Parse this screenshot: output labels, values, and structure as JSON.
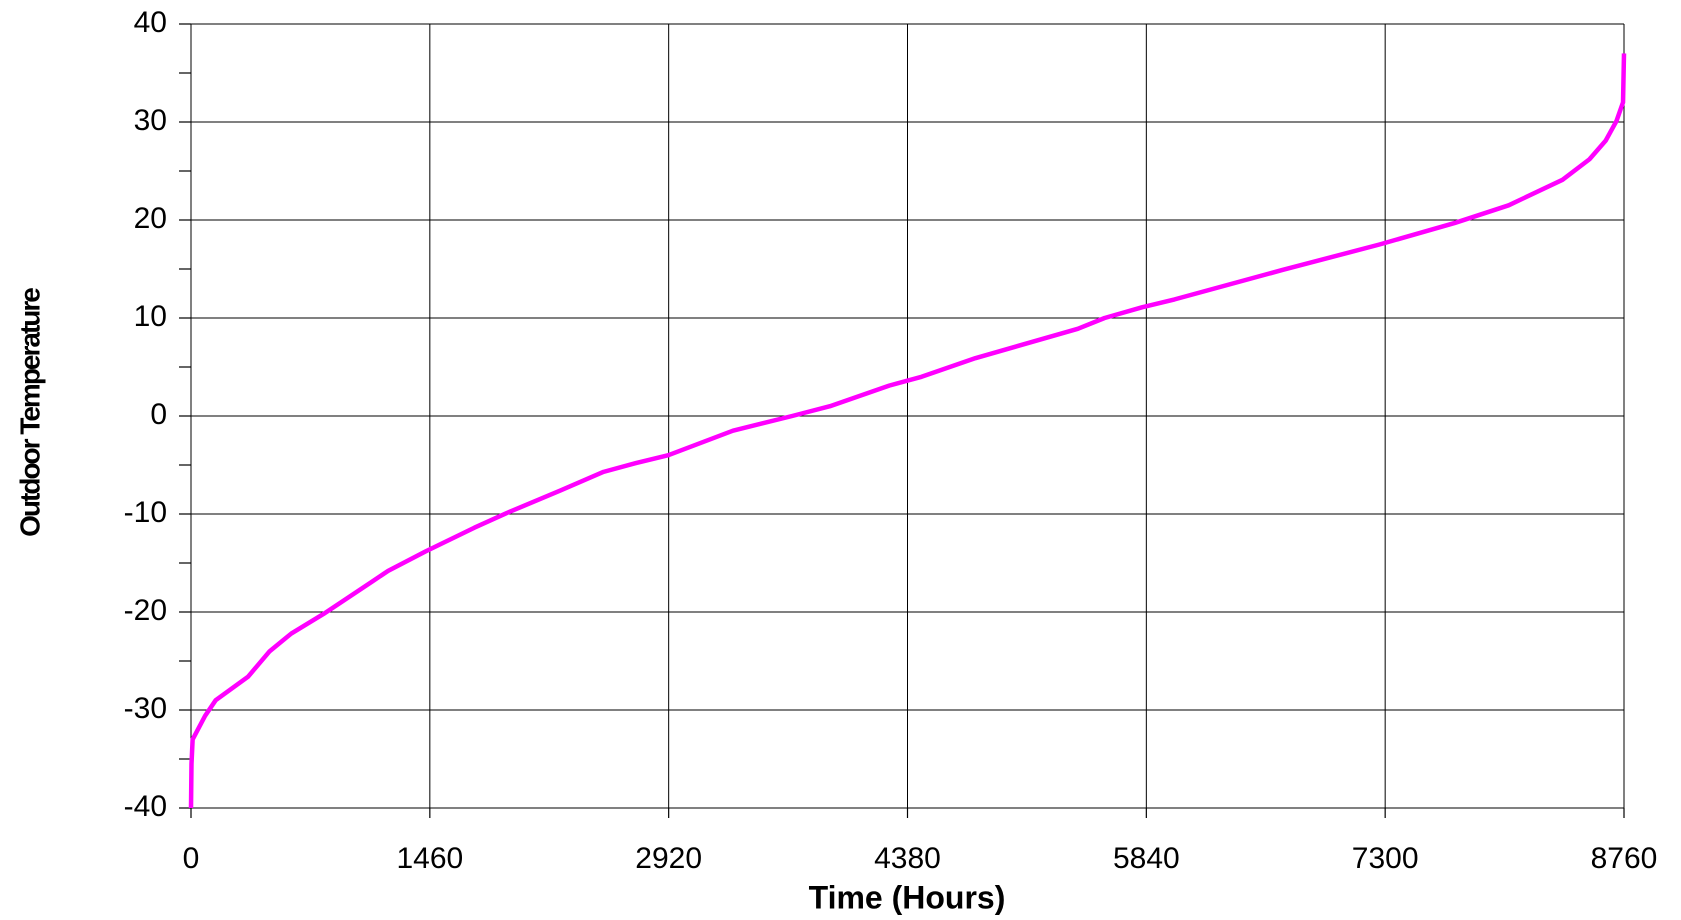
{
  "chart_data": {
    "type": "line",
    "xlabel": "Time (Hours)",
    "ylabel": "Outdoor Temperature",
    "x": [
      0,
      3,
      10,
      86,
      151,
      349,
      481,
      613,
      810,
      1107,
      1205,
      1436,
      1732,
      1930,
      2259,
      2522,
      2720,
      2918,
      3313,
      3675,
      3906,
      4268,
      4466,
      4795,
      5421,
      5585,
      5816,
      6013,
      6672,
      7265,
      7726,
      8055,
      8384,
      8549,
      8648,
      8714,
      8754,
      8760
    ],
    "series": [
      {
        "color": "#ff00ff",
        "values": [
          -40,
          -35.5,
          -33,
          -30.6,
          -29,
          -26.6,
          -24,
          -22.2,
          -20.2,
          -16.9,
          -15.8,
          -13.8,
          -11.4,
          -9.9,
          -7.6,
          -5.7,
          -4.8,
          -4,
          -1.5,
          0,
          1,
          3.1,
          4,
          5.9,
          8.9,
          10,
          11.1,
          11.9,
          14.9,
          17.5,
          19.7,
          21.5,
          24.1,
          26.2,
          28.1,
          30.1,
          32,
          37
        ]
      }
    ],
    "xlim": [
      0,
      8760
    ],
    "xticks": [
      0,
      1460,
      2920,
      4380,
      5840,
      7300,
      8760
    ],
    "ylim": [
      -40,
      40
    ],
    "yticks": [
      -40,
      -30,
      -20,
      -10,
      0,
      10,
      20,
      30,
      40
    ],
    "yminorticks": [
      -35,
      -25,
      -15,
      -5,
      5,
      15,
      25,
      35
    ],
    "grid": true
  }
}
